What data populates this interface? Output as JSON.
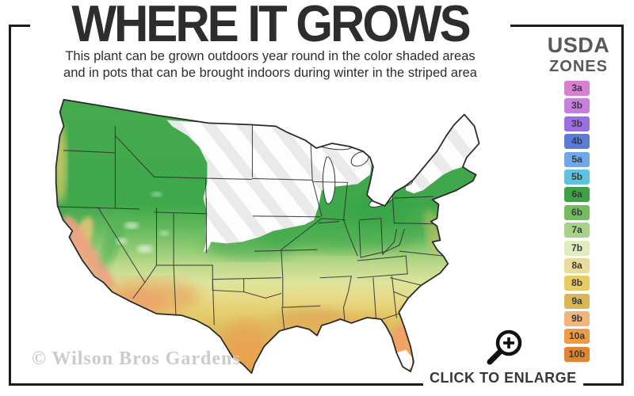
{
  "title": "WHERE IT GROWS",
  "subtitle": {
    "line1": "This plant can be grown outdoors year round in the color shaded areas",
    "line2": "and in pots that can be brought indoors during winter in the striped area"
  },
  "legend": {
    "title_line1": "USDA",
    "title_line2": "ZONES",
    "zones": [
      {
        "label": "3a",
        "color": "#d87fd2"
      },
      {
        "label": "3b",
        "color": "#c77ede"
      },
      {
        "label": "3b",
        "color": "#9b6fe3"
      },
      {
        "label": "4b",
        "color": "#5b7bd9"
      },
      {
        "label": "5a",
        "color": "#70a6ea"
      },
      {
        "label": "5b",
        "color": "#5fc2e0"
      },
      {
        "label": "6a",
        "color": "#3fa047"
      },
      {
        "label": "6b",
        "color": "#73bd5e"
      },
      {
        "label": "7a",
        "color": "#a6d387"
      },
      {
        "label": "7b",
        "color": "#dfecc0"
      },
      {
        "label": "8a",
        "color": "#e9dc9b"
      },
      {
        "label": "8b",
        "color": "#e7cb63"
      },
      {
        "label": "9a",
        "color": "#d8b754"
      },
      {
        "label": "9b",
        "color": "#f2b47a"
      },
      {
        "label": "10a",
        "color": "#ef9b43"
      },
      {
        "label": "10b",
        "color": "#e28532"
      }
    ]
  },
  "map": {
    "type": "usa-usda-zones-choropleth",
    "outline_color": "#2a2a2a",
    "stripe_color": "#eaeaea"
  },
  "watermark": "© Wilson Bros Gardens",
  "enlarge": {
    "label": "CLICK TO ENLARGE"
  }
}
